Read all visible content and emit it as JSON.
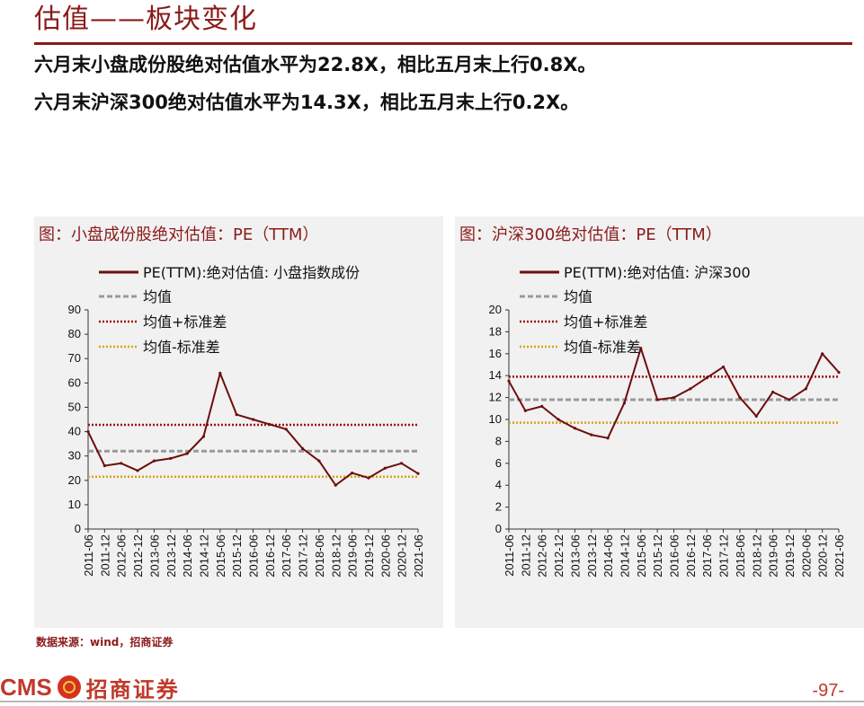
{
  "header": {
    "title": "估值——板块变化",
    "summary_line1": "六月末小盘成份股绝对估值水平为22.8X，相比五月末上行0.8X。",
    "summary_line2": "六月末沪深300绝对估值水平为14.3X，相比五月末上行0.2X。"
  },
  "footer": {
    "source": "数据来源：wind，招商证券",
    "logo_text": "CMS",
    "logo_cn": "招商证券",
    "page_number": "-97-"
  },
  "colors": {
    "accent": "#8b1a1a",
    "series": "#6e0d0d",
    "mean": "#9a9a9a",
    "plus_sd": "#a01010",
    "minus_sd": "#d4a514"
  },
  "chart_data": [
    {
      "type": "line",
      "title": "图：小盘成份股绝对估值：PE（TTM）",
      "legend": [
        "PE(TTM):绝对估值: 小盘指数成份",
        "均值",
        "均值+标准差",
        "均值-标准差"
      ],
      "ylim": [
        0,
        90
      ],
      "yticks": [
        0,
        10,
        20,
        30,
        40,
        50,
        60,
        70,
        80,
        90
      ],
      "categories": [
        "2011-06",
        "2011-12",
        "2012-06",
        "2012-12",
        "2013-06",
        "2013-12",
        "2014-06",
        "2014-12",
        "2015-06",
        "2015-12",
        "2016-06",
        "2016-12",
        "2017-06",
        "2017-12",
        "2018-06",
        "2018-12",
        "2019-06",
        "2019-12",
        "2020-06",
        "2020-12",
        "2021-06"
      ],
      "series": [
        {
          "name": "PE(TTM):绝对估值: 小盘指数成份",
          "values": [
            40,
            26,
            27,
            24,
            28,
            29,
            31,
            38,
            64,
            47,
            45,
            43,
            41,
            33,
            28,
            18,
            23,
            21,
            25,
            27,
            22.8
          ]
        }
      ],
      "mean": 32,
      "mean_plus_sd": 42.8,
      "mean_minus_sd": 21.5
    },
    {
      "type": "line",
      "title": "图：沪深300绝对估值：PE（TTM）",
      "legend": [
        "PE(TTM):绝对估值: 沪深300",
        "均值",
        "均值+标准差",
        "均值-标准差"
      ],
      "ylim": [
        0,
        20
      ],
      "yticks": [
        0,
        2,
        4,
        6,
        8,
        10,
        12,
        14,
        16,
        18,
        20
      ],
      "categories": [
        "2011-06",
        "2011-12",
        "2012-06",
        "2012-12",
        "2013-06",
        "2013-12",
        "2014-06",
        "2014-12",
        "2015-06",
        "2015-12",
        "2016-06",
        "2016-12",
        "2017-06",
        "2017-12",
        "2018-06",
        "2018-12",
        "2019-06",
        "2019-12",
        "2020-06",
        "2020-12",
        "2021-06"
      ],
      "series": [
        {
          "name": "PE(TTM):绝对估值: 沪深300",
          "values": [
            13.5,
            10.8,
            11.2,
            10.0,
            9.2,
            8.6,
            8.3,
            11.5,
            16.5,
            11.8,
            12.0,
            12.8,
            13.8,
            14.8,
            12.0,
            10.3,
            12.5,
            11.8,
            12.8,
            16.0,
            14.3
          ]
        }
      ],
      "mean": 11.8,
      "mean_plus_sd": 13.9,
      "mean_minus_sd": 9.7
    }
  ]
}
